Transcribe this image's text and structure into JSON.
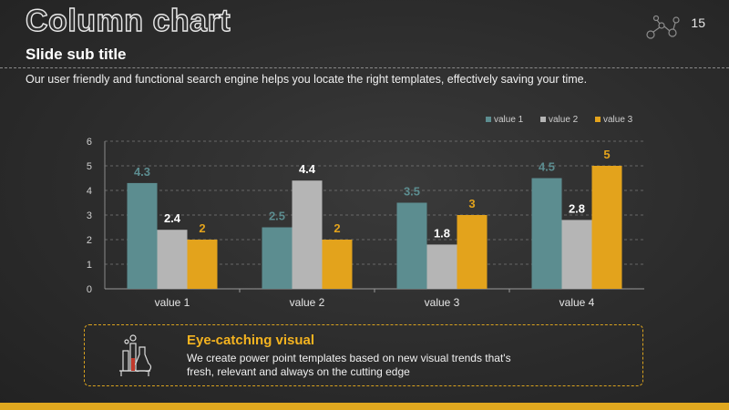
{
  "slide": {
    "title": "Column chart",
    "subtitle": "Slide sub title",
    "body": "Our user friendly and functional search engine helps you locate the right templates, effectively saving your time.",
    "page_number": "15"
  },
  "caption": {
    "heading": "Eye-catching visual",
    "text": "We create power point templates based on new visual trends that's fresh, relevant and always on the cutting edge"
  },
  "colors": {
    "accent": "#e0a81f",
    "series1": "#5c8d90",
    "series2": "#b5b5b5",
    "series3": "#e3a31c"
  },
  "icons": {
    "decoration": "molecule-doodle-icon",
    "caption": "chemistry-flask-icon"
  },
  "chart_data": {
    "type": "bar",
    "categories": [
      "value 1",
      "value 2",
      "value 3",
      "value 4"
    ],
    "series": [
      {
        "name": "value 1",
        "values": [
          4.3,
          2.5,
          3.5,
          4.5
        ],
        "color": "#5c8d90"
      },
      {
        "name": "value 2",
        "values": [
          2.4,
          4.4,
          1.8,
          2.8
        ],
        "color": "#b5b5b5"
      },
      {
        "name": "value 3",
        "values": [
          2,
          2,
          3,
          5
        ],
        "color": "#e3a31c"
      }
    ],
    "ylim": [
      0,
      6
    ],
    "yticks": [
      0,
      1,
      2,
      3,
      4,
      5,
      6
    ],
    "grid": true,
    "legend": "top-right",
    "data_labels": true
  }
}
